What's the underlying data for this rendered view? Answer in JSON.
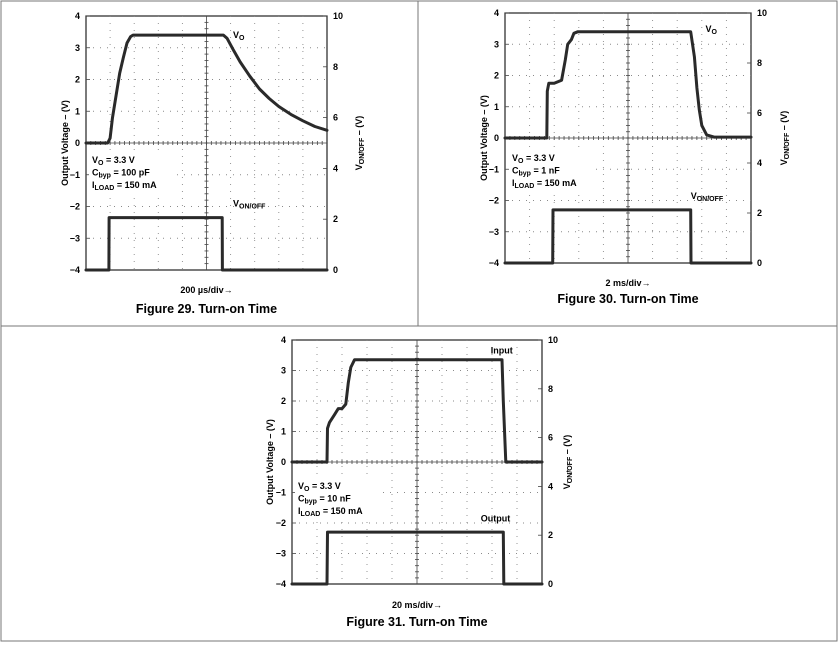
{
  "chart_data": [
    {
      "type": "line",
      "title": "Figure 29. Turn-on Time",
      "xlabel": "200 µs/div→",
      "ylabel": "Output Voltage – (V)",
      "ylabel_right": "VON/OFF – (V)",
      "ylim": [
        -4,
        4
      ],
      "ylim_right": [
        0,
        10
      ],
      "y_ticks": [
        "4",
        "3",
        "2",
        "1",
        "0",
        "−1",
        "−2",
        "−3",
        "−4"
      ],
      "y_ticks_right": [
        "10",
        "8",
        "6",
        "4",
        "2",
        "0"
      ],
      "x_divisions": 10,
      "grid": true,
      "conditions": [
        {
          "main": "V",
          "sub": "O",
          "rest": " = 3.3 V"
        },
        {
          "main": "C",
          "sub": "byp",
          "rest": " = 100 pF"
        },
        {
          "main": "I",
          "sub": "LOAD",
          "rest": " = 150 mA"
        }
      ],
      "series": [
        {
          "name": "VO",
          "label_main": "V",
          "label_sub": "O",
          "label_over": false,
          "label_at": [
            6.1,
            3.3
          ],
          "x": [
            0,
            0.9,
            1.0,
            1.1,
            1.25,
            1.4,
            1.55,
            1.7,
            1.85,
            1.95,
            2.1,
            5.7,
            5.85,
            6.1,
            6.4,
            6.8,
            7.2,
            7.6,
            8.0,
            8.5,
            9.0,
            9.5,
            10
          ],
          "y": [
            0,
            0,
            0.15,
            0.8,
            1.5,
            2.2,
            2.7,
            3.15,
            3.35,
            3.4,
            3.4,
            3.4,
            3.3,
            2.95,
            2.55,
            2.1,
            1.7,
            1.4,
            1.15,
            0.9,
            0.7,
            0.52,
            0.4
          ]
        },
        {
          "name": "VON/OFF",
          "label_main": "V",
          "label_sub": "ON/OFF",
          "label_over": false,
          "label_at": [
            6.1,
            -2.0
          ],
          "x": [
            0,
            0.95,
            0.96,
            5.65,
            5.66,
            10
          ],
          "y": [
            -4,
            -4,
            -2.35,
            -2.35,
            -4,
            -4
          ]
        }
      ]
    },
    {
      "type": "line",
      "title": "Figure 30. Turn-on Time",
      "xlabel": "2 ms/div→",
      "ylabel": "Output Voltage – (V)",
      "ylabel_right": "VON/OFF – (V)",
      "ylim": [
        -4,
        4
      ],
      "ylim_right": [
        0,
        10
      ],
      "y_ticks": [
        "4",
        "3",
        "2",
        "1",
        "0",
        "−1",
        "−2",
        "−3",
        "−4"
      ],
      "y_ticks_right": [
        "10",
        "8",
        "6",
        "4",
        "2",
        "0"
      ],
      "x_divisions": 10,
      "grid": true,
      "conditions": [
        {
          "main": "V",
          "sub": "O",
          "rest": " = 3.3 V"
        },
        {
          "main": "C",
          "sub": "byp",
          "rest": " = 1 nF"
        },
        {
          "main": "I",
          "sub": "LOAD",
          "rest": " = 150 mA"
        }
      ],
      "series": [
        {
          "name": "VO",
          "label_main": "V",
          "label_sub": "O",
          "label_over": false,
          "label_at": [
            8.15,
            3.4
          ],
          "x": [
            0,
            1.7,
            1.72,
            1.78,
            2.0,
            2.3,
            2.45,
            2.55,
            2.7,
            2.8,
            2.95,
            7.55,
            7.7,
            7.8,
            7.9,
            8.0,
            8.2,
            8.5,
            10
          ],
          "y": [
            0,
            0,
            1.5,
            1.75,
            1.75,
            1.85,
            2.5,
            3.0,
            3.15,
            3.35,
            3.4,
            3.4,
            2.6,
            1.6,
            0.9,
            0.4,
            0.1,
            0.03,
            0.03
          ]
        },
        {
          "name": "VON/OFF",
          "label_main": "V",
          "label_sub": "ON/OFF",
          "label_over": true,
          "label_at": [
            7.55,
            -1.95
          ],
          "x": [
            0,
            1.94,
            1.95,
            7.55,
            7.56,
            10
          ],
          "y": [
            -4,
            -4,
            -2.3,
            -2.3,
            -4,
            -4
          ]
        }
      ]
    },
    {
      "type": "line",
      "title": "Figure 31. Turn-on Time",
      "xlabel": "20 ms/div→",
      "ylabel": "Output Voltage – (V)",
      "ylabel_right": "VON/OFF – (V)",
      "ylim": [
        -4,
        4
      ],
      "ylim_right": [
        0,
        10
      ],
      "y_ticks": [
        "4",
        "3",
        "2",
        "1",
        "0",
        "−1",
        "−2",
        "−3",
        "−4"
      ],
      "y_ticks_right": [
        "10",
        "8",
        "6",
        "4",
        "2",
        "0"
      ],
      "x_divisions": 10,
      "grid": true,
      "conditions": [
        {
          "main": "V",
          "sub": "O",
          "rest": " = 3.3 V"
        },
        {
          "main": "C",
          "sub": "byp",
          "rest": " = 10 nF"
        },
        {
          "main": "I",
          "sub": "LOAD",
          "rest": " = 150 mA"
        }
      ],
      "series": [
        {
          "name": "Input",
          "label_main": "Input",
          "label_sub": "",
          "label_over": false,
          "label_at": [
            7.95,
            3.55
          ],
          "x": [
            0,
            1.4,
            1.42,
            1.5,
            1.7,
            1.85,
            2.0,
            2.15,
            2.25,
            2.35,
            2.5,
            2.65,
            8.4,
            8.45,
            8.55,
            10
          ],
          "y": [
            0,
            0,
            1.1,
            1.3,
            1.55,
            1.75,
            1.75,
            1.9,
            2.6,
            3.1,
            3.35,
            3.35,
            3.35,
            2.0,
            0,
            0
          ]
        },
        {
          "name": "Output",
          "label_main": "Output",
          "label_sub": "",
          "label_over": false,
          "label_at": [
            7.55,
            -1.95
          ],
          "x": [
            0,
            1.4,
            1.42,
            8.45,
            8.47,
            10
          ],
          "y": [
            -4,
            -4,
            -2.3,
            -2.3,
            -4,
            -4
          ]
        }
      ]
    }
  ]
}
